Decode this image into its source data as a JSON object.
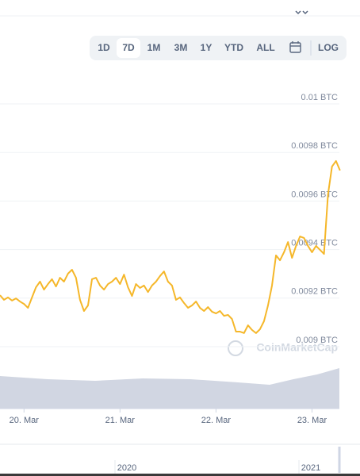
{
  "controls": {
    "ranges": [
      "1D",
      "7D",
      "1M",
      "3M",
      "1Y",
      "YTD",
      "ALL"
    ],
    "selected": "7D",
    "scale": "LOG"
  },
  "watermark": "CoinMarketCap",
  "chart_data": {
    "type": "line",
    "color": "#f5b72a",
    "values": [
      0.009212,
      0.009193,
      0.009203,
      0.00919,
      0.009199,
      0.009186,
      0.009176,
      0.00916,
      0.009203,
      0.009245,
      0.009268,
      0.009235,
      0.009258,
      0.009278,
      0.009248,
      0.009284,
      0.009268,
      0.009301,
      0.009317,
      0.009284,
      0.009193,
      0.009147,
      0.00917,
      0.009278,
      0.009284,
      0.009252,
      0.009235,
      0.009258,
      0.009268,
      0.009284,
      0.009258,
      0.009297,
      0.009245,
      0.009209,
      0.009258,
      0.009242,
      0.009252,
      0.009225,
      0.009252,
      0.009268,
      0.009291,
      0.00931,
      0.009268,
      0.009252,
      0.009193,
      0.009203,
      0.00918,
      0.00916,
      0.00917,
      0.009186,
      0.00916,
      0.009147,
      0.009163,
      0.009144,
      0.009137,
      0.009147,
      0.009127,
      0.009131,
      0.009114,
      0.009062,
      0.009062,
      0.009056,
      0.009088,
      0.009069,
      0.009056,
      0.009072,
      0.009105,
      0.00917,
      0.009252,
      0.009376,
      0.009356,
      0.009389,
      0.009431,
      0.009366,
      0.009415,
      0.009454,
      0.009448,
      0.009415,
      0.009389,
      0.009415,
      0.009399,
      0.009382,
      0.009627,
      0.009742,
      0.009765,
      0.009726
    ],
    "xlim": [
      0,
      90
    ],
    "xticks": [
      {
        "value": 6,
        "label": "20. Mar"
      },
      {
        "value": 30,
        "label": "21. Mar"
      },
      {
        "value": 54,
        "label": "22. Mar"
      },
      {
        "value": 78,
        "label": "23. Mar"
      }
    ],
    "ylim": [
      0.0089,
      0.0101
    ],
    "yticks": [
      {
        "value": 0.009,
        "label": "0.009 BTC"
      },
      {
        "value": 0.0092,
        "label": "0.0092 BTC"
      },
      {
        "value": 0.0094,
        "label": "0.0094 BTC"
      },
      {
        "value": 0.0096,
        "label": "0.0096 BTC"
      },
      {
        "value": 0.0098,
        "label": "0.0098 BTC"
      },
      {
        "value": 0.01,
        "label": "0.01 BTC"
      }
    ],
    "grid": true
  },
  "navigator": {
    "labels": [
      "2020",
      "2021"
    ]
  }
}
